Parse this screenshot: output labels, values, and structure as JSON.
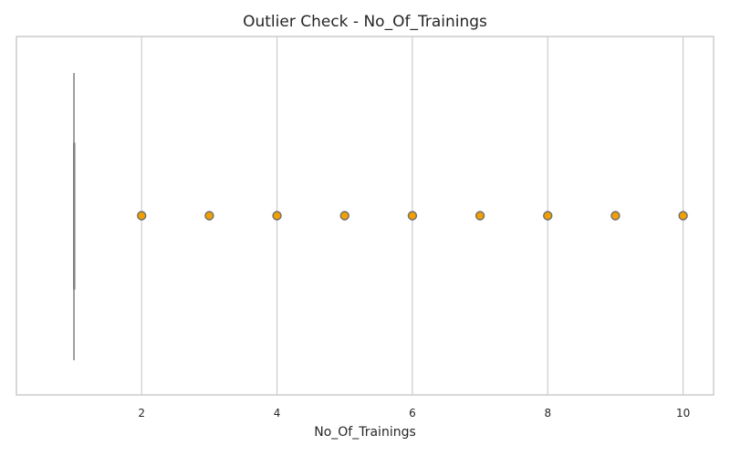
{
  "chart_data": {
    "type": "boxplot",
    "title": "Outlier Check - No_Of_Trainings",
    "xlabel": "No_Of_Trainings",
    "ylabel": "",
    "orientation": "horizontal",
    "xlim": [
      0.15,
      10.45
    ],
    "xticks": [
      2,
      4,
      6,
      8,
      10
    ],
    "grid": true,
    "box": {
      "q1": 1,
      "median": 1,
      "q3": 1,
      "whisker_low": 1,
      "whisker_high": 1
    },
    "outliers": [
      2,
      3,
      4,
      5,
      6,
      7,
      8,
      9,
      10
    ],
    "colors": {
      "box_line": "#7f7f7f",
      "outlier_fill": "#f0a000",
      "outlier_edge": "#6e6e6e",
      "grid": "#cccccc",
      "spine": "#cccccc"
    }
  }
}
